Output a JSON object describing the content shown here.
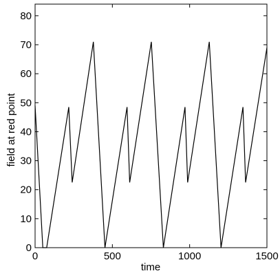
{
  "chart_data": {
    "type": "line",
    "title": "",
    "xlabel": "time",
    "ylabel": "field at red point",
    "xlim": [
      0,
      1500
    ],
    "ylim": [
      0,
      84
    ],
    "xticks": [
      0,
      500,
      1000,
      1500
    ],
    "yticks": [
      0,
      10,
      20,
      30,
      40,
      50,
      60,
      70,
      80
    ],
    "grid": false,
    "legend": "none",
    "line_color": "#000000",
    "series": [
      {
        "name": "",
        "x": [
          0,
          50,
          75,
          218,
          240,
          377,
          452,
          595,
          612,
          752,
          830,
          970,
          987,
          1127,
          1203,
          1345,
          1362,
          1500
        ],
        "y": [
          49,
          0,
          0,
          48.5,
          22.5,
          71,
          0,
          48.5,
          22.5,
          71,
          0,
          48.5,
          22.5,
          71,
          0,
          48.5,
          22.5,
          69
        ]
      }
    ]
  }
}
